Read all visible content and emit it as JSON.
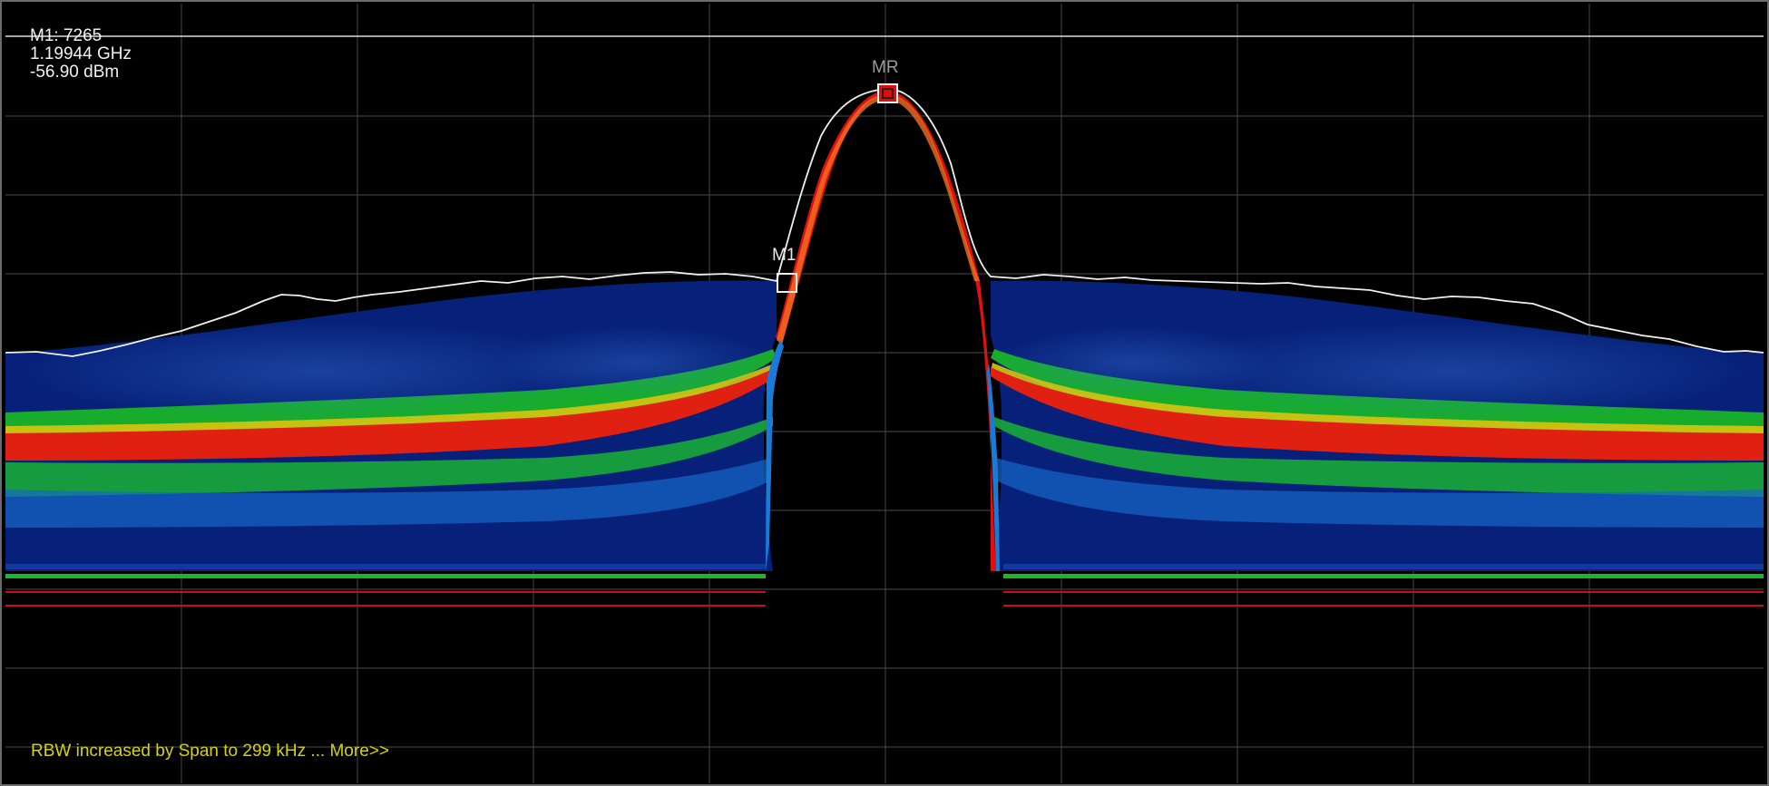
{
  "marker_readout": {
    "line1": "M1: 7265",
    "line2": "1.19944 GHz",
    "line3": "-56.90 dBm"
  },
  "markers": {
    "m1_label": "M1",
    "mr_label": "MR"
  },
  "status": {
    "message": "RBW increased by Span to 299 kHz ... More>>"
  },
  "colors": {
    "background": "#000000",
    "grid": "#4a4a4a",
    "trace": "#f0f0f0",
    "persistence_low": "#0a2a9a",
    "persistence_mid": "#18c020",
    "persistence_high": "#e01010",
    "status_text": "#d8d300"
  }
}
